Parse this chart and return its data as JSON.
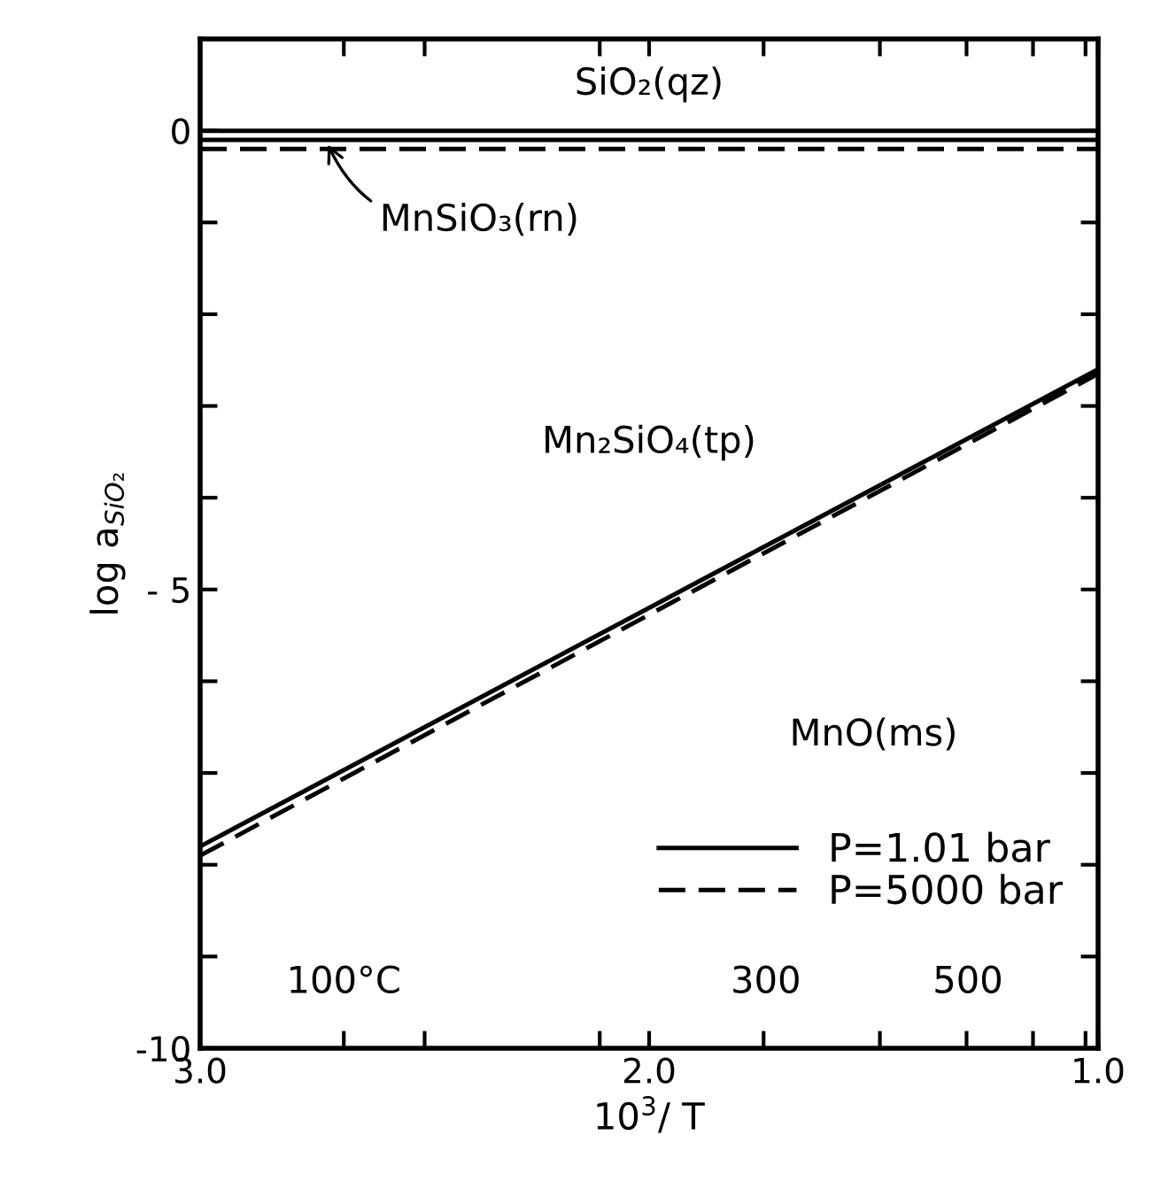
{
  "chart_data": {
    "type": "line",
    "xlabel": "10$^{3}$/ T",
    "ylabel": "log a$_{SiO₂}$",
    "x": [
      3.0,
      1.0
    ],
    "xlim": [
      3.0,
      1.0
    ],
    "xticks": [
      {
        "value": 3.0,
        "label": "3.0"
      },
      {
        "value": 2.68,
        "label": null
      },
      {
        "value": 2.5,
        "label": null
      },
      {
        "value": 2.11,
        "label": null
      },
      {
        "value": 2.0,
        "label": "2.0"
      },
      {
        "value": 1.745,
        "label": null
      },
      {
        "value": 1.486,
        "label": null
      },
      {
        "value": 1.293,
        "label": null
      },
      {
        "value": 1.145,
        "label": null
      },
      {
        "value": 1.028,
        "label": null
      },
      {
        "value": 1.0,
        "label": "1.0"
      }
    ],
    "ylim": [
      -10,
      1.0
    ],
    "yticks": [
      {
        "value": -10,
        "label": "-10"
      },
      {
        "value": -9,
        "label": null
      },
      {
        "value": -8,
        "label": null
      },
      {
        "value": -7,
        "label": null
      },
      {
        "value": -6,
        "label": null
      },
      {
        "value": -5,
        "label": "- 5"
      },
      {
        "value": -4,
        "label": null
      },
      {
        "value": -3,
        "label": null
      },
      {
        "value": -2,
        "label": null
      },
      {
        "value": -1,
        "label": null
      },
      {
        "value": 0,
        "label": "0"
      }
    ],
    "series": [
      {
        "name": "P=1.01 bar",
        "color": "#000000",
        "line_style": "solid",
        "values": [
          -7.8,
          -2.6
        ]
      },
      {
        "name": "P=5000 bar",
        "color": "#000000",
        "line_style": "dashed",
        "values": [
          -7.9,
          -2.65
        ]
      },
      {
        "color": "#000000",
        "line_style": "solid",
        "values": [
          0.0,
          0.0
        ]
      },
      {
        "color": "#000000",
        "line_style": "solid",
        "values": [
          -0.1,
          -0.1
        ]
      },
      {
        "color": "#000000",
        "line_style": "dashed",
        "values": [
          -0.2,
          -0.2
        ]
      }
    ],
    "annotations": [
      "SiO₂(qz)",
      {
        "text": "MnSiO₃(rn)",
        "x": 2.72,
        "y": -0.1
      },
      "Mn₂SiO₄(tp)",
      "MnO(ms)",
      "100°C",
      "300",
      "500"
    ],
    "legend": "bottom right",
    "grid": false,
    "marker": "none"
  }
}
